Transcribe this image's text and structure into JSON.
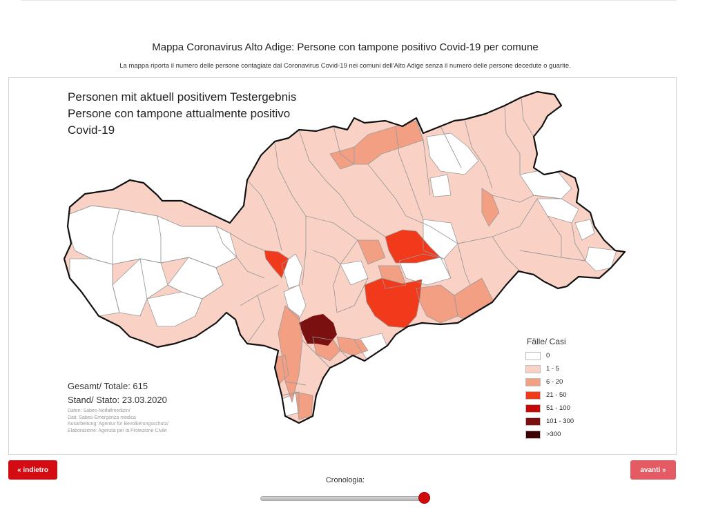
{
  "page": {
    "title": "Mappa Coronavirus Alto Adige: Persone con tampone positivo Covid-19 per comune",
    "subtitle": "La mappa riporta il numero delle persone contagiate dal Coronavirus Covid-19 nei comuni dell'Alto Adige senza il numero delle persone decedute o guarite."
  },
  "map": {
    "title_lines": [
      "Personen mit aktuell positivem Testergebnis",
      "Persone con tampone attualmente positivo",
      "Covid-19"
    ],
    "total_label": "Gesamt/ Totale: 615",
    "date_label": "Stand/ Stato: 23.03.2020",
    "credits": [
      "Daten: Sabes-Notfallmedizin/",
      "Dati: Sabes-Emergenza medica",
      "Ausarbeitung: Agentur für Bevölkerungsschutz/",
      "Elaborazione: Agenzia per la Protezione Civile"
    ],
    "colors": {
      "border": "#111111",
      "inner_border": "#9a9a9a",
      "none": "#ffffff",
      "low": "#f9d2c5",
      "mid": "#f29f83",
      "high": "#f13a1c",
      "vhigh": "#c40808",
      "top": "#7a1010",
      "max": "#3f0202"
    }
  },
  "legend": {
    "title": "Fälle/ Casi",
    "items": [
      {
        "label": "0",
        "color": "#ffffff"
      },
      {
        "label": "1 - 5",
        "color": "#f9d2c5"
      },
      {
        "label": "6 - 20",
        "color": "#f29f83"
      },
      {
        "label": "21 - 50",
        "color": "#f13a1c"
      },
      {
        "label": "51 - 100",
        "color": "#c40808"
      },
      {
        "label": "101 - 300",
        "color": "#7a1010"
      },
      {
        "label": ">300",
        "color": "#3f0202"
      }
    ]
  },
  "nav": {
    "back_label": "« indietro",
    "next_label": "avanti »",
    "timeline_label": "Cronologia:",
    "timeline_position": 1.0
  }
}
